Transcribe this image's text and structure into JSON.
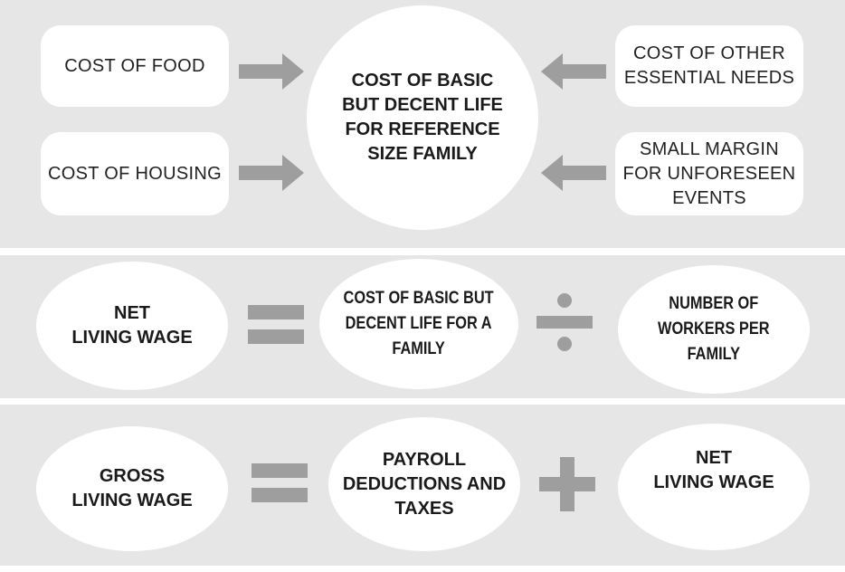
{
  "colors": {
    "band": "#e6e6e6",
    "shape": "#ffffff",
    "operator": "#9e9e9e",
    "text": "#1a1a1a"
  },
  "row1": {
    "center": "COST OF BASIC\nBUT DECENT LIFE\nFOR REFERENCE\nSIZE FAMILY",
    "food": "COST OF FOOD",
    "housing": "COST OF HOUSING",
    "other_needs": "COST OF OTHER\nESSENTIAL NEEDS",
    "margin": "SMALL MARGIN\nFOR UNFORESEEN\nEVENTS",
    "arrow_icon": "arrow-right-icon"
  },
  "row2": {
    "result": "NET\nLIVING WAGE",
    "operator": "equals-icon",
    "operand1": "COST OF BASIC BUT\nDECENT LIFE FOR A\nFAMILY",
    "operator2": "divide-icon",
    "operand2": "NUMBER OF\nWORKERS PER\nFAMILY"
  },
  "row3": {
    "result": "GROSS\nLIVING WAGE",
    "operator": "equals-icon",
    "operand1": "PAYROLL\nDEDUCTIONS AND\nTAXES",
    "operator2": "plus-icon",
    "operand2": "NET\nLIVING WAGE"
  }
}
